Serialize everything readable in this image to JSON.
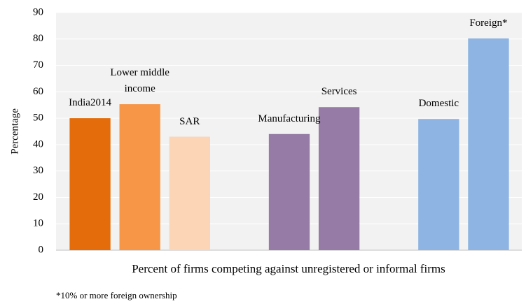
{
  "chart_data": {
    "type": "bar",
    "y_axis_label": "Percentage",
    "x_axis_label": "Percent of firms competing against unregistered or informal firms",
    "footnote": "*10% or more foreign ownership",
    "categories": [
      "India2014",
      "Lower middle income",
      "SAR",
      null,
      "Manufacturing",
      "Services",
      null,
      "Domestic",
      "Foreign*"
    ],
    "values": [
      50,
      55.3,
      43,
      null,
      44,
      54.2,
      null,
      49.7,
      80.2
    ],
    "colors": [
      "#e46c0a",
      "#f79646",
      "#fbd5b5",
      null,
      "#957ba5",
      "#957ba5",
      null,
      "#8db4e2",
      "#8db4e2"
    ],
    "ylim": [
      0,
      90
    ],
    "yticks": [
      0,
      10,
      20,
      30,
      40,
      50,
      60,
      70,
      80,
      90
    ],
    "grid": true
  }
}
